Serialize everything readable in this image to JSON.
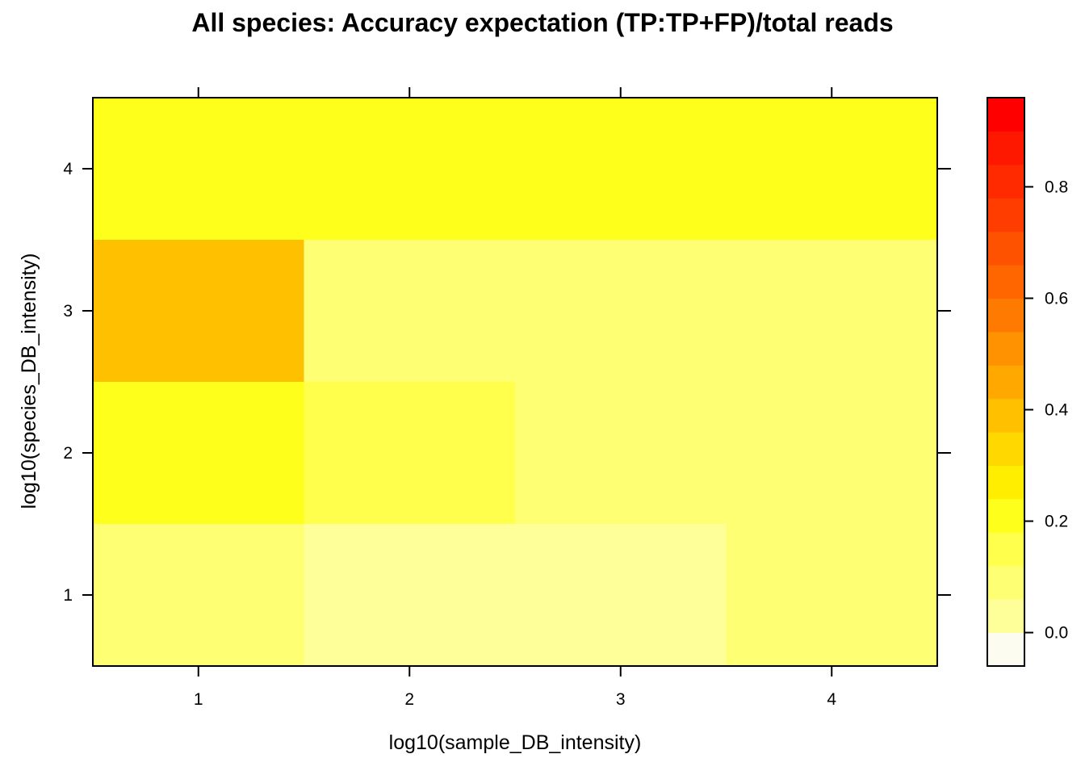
{
  "chart_data": {
    "type": "heatmap",
    "title": "All species: Accuracy expectation (TP:TP+FP)/total reads",
    "xlabel": "log10(sample_DB_intensity)",
    "ylabel": "log10(species_DB_intensity)",
    "x": [
      1,
      2,
      3,
      4
    ],
    "y": [
      1,
      2,
      3,
      4
    ],
    "xlim": [
      0.5,
      4.5
    ],
    "ylim": [
      0.5,
      4.5
    ],
    "x_ticks": [
      "1",
      "2",
      "3",
      "4"
    ],
    "y_ticks": [
      "1",
      "2",
      "3",
      "4"
    ],
    "z": [
      [
        0.1,
        0.0,
        0.0,
        0.07
      ],
      [
        0.2,
        0.12,
        0.07,
        0.07
      ],
      [
        0.4,
        0.07,
        0.07,
        0.07
      ],
      [
        0.2,
        0.2,
        0.18,
        0.18
      ]
    ],
    "colorbar": {
      "range": [
        -0.06,
        0.96
      ],
      "step": 0.06,
      "ticks": [
        "0.0",
        "0.2",
        "0.4",
        "0.6",
        "0.8"
      ],
      "tick_values": [
        0.0,
        0.2,
        0.4,
        0.6,
        0.8
      ],
      "colors": [
        "#fcfcf1",
        "#ffff9a",
        "#ffff74",
        "#ffff4c",
        "#ffff1c",
        "#ffee00",
        "#ffd800",
        "#ffc000",
        "#ffa900",
        "#ff9200",
        "#ff7a00",
        "#ff6600",
        "#ff5200",
        "#ff3d00",
        "#ff2a00",
        "#ff1800",
        "#ff0000"
      ]
    },
    "grid": false,
    "legend": "colorbar right"
  }
}
